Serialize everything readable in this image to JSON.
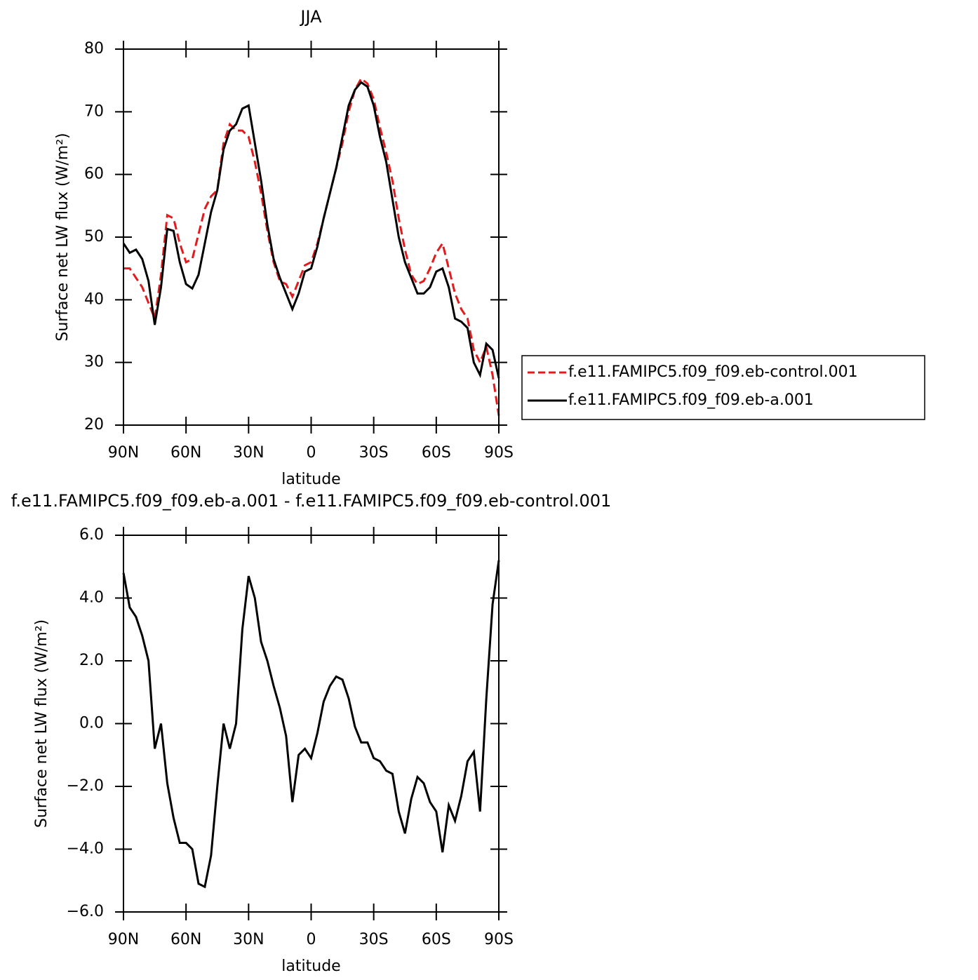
{
  "chart_data": [
    {
      "type": "line",
      "title": "JJA",
      "ylabel": "Surface net LW flux (W/m²)",
      "xlabel": "latitude",
      "xlim": [
        90,
        -90
      ],
      "xticks": [
        {
          "value": 90,
          "label": "90N"
        },
        {
          "value": 60,
          "label": "60N"
        },
        {
          "value": 30,
          "label": "30N"
        },
        0,
        {
          "value": -30,
          "label": "30S"
        },
        {
          "value": -60,
          "label": "60S"
        },
        {
          "value": -90,
          "label": "90S"
        }
      ],
      "ylim": [
        20,
        80
      ],
      "yticks": [
        20,
        30,
        40,
        50,
        60,
        70,
        80
      ],
      "legend": "right",
      "x": [
        90,
        87,
        84,
        81,
        78,
        75,
        72,
        69,
        66,
        63,
        60,
        57,
        54,
        51,
        48,
        45,
        42,
        39,
        36,
        33,
        30,
        27,
        24,
        21,
        18,
        15,
        12,
        9,
        6,
        3,
        0,
        -3,
        -6,
        -9,
        -12,
        -15,
        -18,
        -21,
        -24,
        -27,
        -30,
        -33,
        -36,
        -39,
        -42,
        -45,
        -48,
        -51,
        -54,
        -57,
        -60,
        -63,
        -66,
        -69,
        -72,
        -75,
        -78,
        -81,
        -84,
        -87,
        -90
      ],
      "series": [
        {
          "name": "f.e11.FAMIPC5.f09_f09.eb-control.001",
          "color": "#e41a1c",
          "dashed": true,
          "values": [
            45,
            45,
            43.5,
            42,
            39.5,
            37,
            44,
            53.5,
            53,
            49,
            46,
            46.5,
            50.5,
            54.5,
            56.5,
            57.5,
            65,
            68,
            67,
            67,
            66,
            62,
            57,
            51,
            46,
            43,
            42.5,
            40.5,
            43,
            45.5,
            46,
            49,
            53,
            57,
            61,
            65,
            70,
            73.5,
            75.3,
            74.5,
            72,
            67.5,
            63.5,
            59,
            53,
            48,
            44,
            42.5,
            43,
            45,
            47.5,
            49,
            45,
            41,
            38.5,
            37,
            32,
            30,
            32.5,
            28,
            21.5
          ]
        },
        {
          "name": "f.e11.FAMIPC5.f09_f09.eb-a.001",
          "color": "#000000",
          "dashed": false,
          "values": [
            49,
            47.5,
            48,
            46.5,
            43,
            36,
            42,
            51.3,
            51,
            46,
            42.5,
            41.8,
            44,
            49,
            54,
            57.5,
            64,
            67,
            68,
            70.5,
            71,
            65,
            59,
            52,
            46.5,
            43.5,
            41,
            38.5,
            41,
            44.5,
            45,
            48.5,
            53,
            57,
            61,
            66,
            71,
            73.5,
            74.7,
            74,
            71,
            66,
            62,
            56,
            50,
            46,
            43.5,
            41,
            41,
            42,
            44.5,
            45,
            42,
            37,
            36.5,
            35.5,
            30,
            28,
            33,
            32,
            27.5
          ]
        }
      ]
    },
    {
      "type": "line",
      "title": "f.e11.FAMIPC5.f09_f09.eb-a.001 - f.e11.FAMIPC5.f09_f09.eb-control.001",
      "ylabel": "Surface net LW flux (W/m²)",
      "xlabel": "latitude",
      "xlim": [
        90,
        -90
      ],
      "xticks": [
        {
          "value": 90,
          "label": "90N"
        },
        {
          "value": 60,
          "label": "60N"
        },
        {
          "value": 30,
          "label": "30N"
        },
        0,
        {
          "value": -30,
          "label": "30S"
        },
        {
          "value": -60,
          "label": "60S"
        },
        {
          "value": -90,
          "label": "90S"
        }
      ],
      "ylim": [
        -6,
        6
      ],
      "yticks": [
        {
          "value": -6,
          "label": "−6.0"
        },
        {
          "value": -4,
          "label": "−4.0"
        },
        {
          "value": -2,
          "label": "−2.0"
        },
        {
          "value": 0,
          "label": "0.0"
        },
        {
          "value": 2,
          "label": "2.0"
        },
        {
          "value": 4,
          "label": "4.0"
        },
        {
          "value": 6,
          "label": "6.0"
        }
      ],
      "x": [
        90,
        87,
        84,
        81,
        78,
        75,
        72,
        69,
        66,
        63,
        60,
        57,
        54,
        51,
        48,
        45,
        42,
        39,
        36,
        33,
        30,
        27,
        24,
        21,
        18,
        15,
        12,
        9,
        6,
        3,
        0,
        -3,
        -6,
        -9,
        -12,
        -15,
        -18,
        -21,
        -24,
        -27,
        -30,
        -33,
        -36,
        -39,
        -42,
        -45,
        -48,
        -51,
        -54,
        -57,
        -60,
        -63,
        -66,
        -69,
        -72,
        -75,
        -78,
        -81,
        -84,
        -87,
        -90
      ],
      "series": [
        {
          "color": "#000000",
          "dashed": false,
          "values": [
            4.8,
            3.7,
            3.4,
            2.8,
            2.0,
            -0.8,
            0.0,
            -1.9,
            -3.0,
            -3.8,
            -3.8,
            -4.0,
            -5.1,
            -5.2,
            -4.2,
            -2.0,
            0.0,
            -0.8,
            0.0,
            3.0,
            4.7,
            4.0,
            2.6,
            2.0,
            1.2,
            0.5,
            -0.4,
            -2.5,
            -1.0,
            -0.8,
            -1.1,
            -0.3,
            0.7,
            1.2,
            1.5,
            1.4,
            0.8,
            -0.1,
            -0.6,
            -0.6,
            -1.1,
            -1.2,
            -1.5,
            -1.6,
            -2.8,
            -3.5,
            -2.4,
            -1.7,
            -1.9,
            -2.5,
            -2.8,
            -4.1,
            -2.6,
            -3.1,
            -2.3,
            -1.2,
            -0.9,
            -2.8,
            0.8,
            3.8,
            5.2
          ]
        }
      ]
    }
  ]
}
